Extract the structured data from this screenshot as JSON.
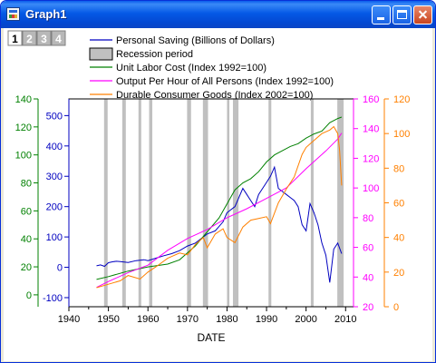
{
  "window": {
    "title": "Graph1",
    "controls": [
      "minimize",
      "maximize",
      "close"
    ]
  },
  "layer_tabs": [
    "1",
    "2",
    "3",
    "4"
  ],
  "legend": [
    {
      "label": "Personal Saving (Billions of Dollars)",
      "color": "#0000C0",
      "kind": "line"
    },
    {
      "label": "Recession period",
      "color": "#C0C0C0",
      "kind": "box"
    },
    {
      "label": "Unit Labor Cost (Index 1992=100)",
      "color": "#008000",
      "kind": "line"
    },
    {
      "label": "Output Per Hour of All Persons (Index 1992=100)",
      "color": "#FF00FF",
      "kind": "line"
    },
    {
      "label": "Durable Consumer Goods (Index 2002=100)",
      "color": "#FF8000",
      "kind": "line"
    }
  ],
  "chart_data": {
    "type": "line",
    "xlabel": "DATE",
    "xlim": [
      1940,
      2012
    ],
    "x_ticks": [
      "1940",
      "1950",
      "1960",
      "1970",
      "1980",
      "1990",
      "2000",
      "2010"
    ],
    "recessions": [
      [
        1948.9,
        1949.8
      ],
      [
        1953.5,
        1954.4
      ],
      [
        1957.6,
        1958.3
      ],
      [
        1960.3,
        1961.1
      ],
      [
        1969.9,
        1970.9
      ],
      [
        1973.9,
        1975.2
      ],
      [
        1980.0,
        1980.6
      ],
      [
        1981.5,
        1982.9
      ],
      [
        1990.5,
        1991.2
      ],
      [
        2001.2,
        2001.9
      ],
      [
        2007.9,
        2009.5
      ]
    ],
    "axes": {
      "saving": {
        "color": "#0000C0",
        "ylim": [
          -130,
          555
        ],
        "ticks": [
          "-100",
          "0",
          "100",
          "200",
          "300",
          "400",
          "500"
        ]
      },
      "ulc": {
        "color": "#008000",
        "ylim": [
          -8.5,
          140
        ],
        "ticks": [
          "0",
          "20",
          "40",
          "60",
          "80",
          "100",
          "120",
          "140"
        ]
      },
      "oph": {
        "color": "#FF00FF",
        "ylim": [
          20,
          160
        ],
        "ticks": [
          "20",
          "40",
          "60",
          "80",
          "100",
          "120",
          "140",
          "160"
        ]
      },
      "dcg": {
        "color": "#FF8000",
        "ylim": [
          0,
          120
        ],
        "ticks": [
          "0",
          "20",
          "40",
          "60",
          "80",
          "100",
          "120"
        ]
      }
    },
    "series": [
      {
        "key": "saving",
        "name": "Personal Saving (Billions of Dollars)",
        "color": "#0000C0",
        "x": [
          1947,
          1948,
          1949,
          1950,
          1951,
          1952,
          1953,
          1955,
          1957,
          1959,
          1960,
          1962,
          1964,
          1966,
          1968,
          1970,
          1972,
          1974,
          1975,
          1977,
          1979,
          1980,
          1982,
          1984,
          1985,
          1986,
          1987,
          1988,
          1989,
          1990,
          1991,
          1992,
          1993,
          1994,
          1995,
          1996,
          1997,
          1998,
          1999,
          2000,
          2001,
          2002,
          2003,
          2004,
          2005,
          2006,
          2007,
          2008,
          2009
        ],
        "y": [
          5,
          8,
          3,
          15,
          18,
          20,
          19,
          16,
          22,
          25,
          22,
          30,
          38,
          45,
          55,
          70,
          80,
          100,
          110,
          120,
          150,
          180,
          200,
          260,
          240,
          220,
          200,
          240,
          260,
          280,
          300,
          330,
          260,
          250,
          240,
          230,
          220,
          200,
          140,
          120,
          210,
          180,
          140,
          80,
          40,
          -50,
          60,
          80,
          45
        ]
      },
      {
        "key": "ulc",
        "name": "Unit Labor Cost (Index 1992=100)",
        "color": "#008000",
        "x": [
          1947,
          1950,
          1955,
          1960,
          1965,
          1968,
          1970,
          1972,
          1975,
          1978,
          1980,
          1982,
          1984,
          1986,
          1988,
          1990,
          1992,
          1994,
          1996,
          1998,
          2000,
          2002,
          2004,
          2006,
          2008,
          2009
        ],
        "y": [
          11,
          13,
          17,
          20,
          22,
          25,
          30,
          35,
          45,
          55,
          65,
          75,
          80,
          83,
          88,
          95,
          100,
          103,
          106,
          108,
          112,
          115,
          117,
          123,
          126,
          127
        ]
      },
      {
        "key": "oph",
        "name": "Output Per Hour of All Persons (Index 1992=100)",
        "color": "#FF00FF",
        "x": [
          1947,
          1950,
          1955,
          1960,
          1965,
          1970,
          1975,
          1980,
          1985,
          1990,
          1995,
          2000,
          2005,
          2008,
          2009
        ],
        "y": [
          33,
          37,
          43,
          48,
          58,
          66,
          72,
          80,
          86,
          93,
          100,
          113,
          125,
          133,
          137
        ]
      },
      {
        "key": "dcg",
        "name": "Durable Consumer Goods (Index 2002=100)",
        "color": "#FF8000",
        "x": [
          1947,
          1950,
          1953,
          1955,
          1958,
          1960,
          1962,
          1965,
          1968,
          1970,
          1972,
          1974,
          1975,
          1977,
          1979,
          1980,
          1982,
          1984,
          1986,
          1988,
          1990,
          1991,
          1993,
          1995,
          1997,
          1999,
          2000,
          2002,
          2004,
          2006,
          2007,
          2008,
          2008.5,
          2009
        ],
        "y": [
          11,
          13,
          15,
          18,
          16,
          20,
          23,
          28,
          31,
          30,
          36,
          40,
          34,
          42,
          45,
          40,
          37,
          46,
          50,
          51,
          52,
          48,
          60,
          68,
          75,
          88,
          92,
          96,
          100,
          102,
          104,
          100,
          90,
          70
        ]
      }
    ]
  }
}
